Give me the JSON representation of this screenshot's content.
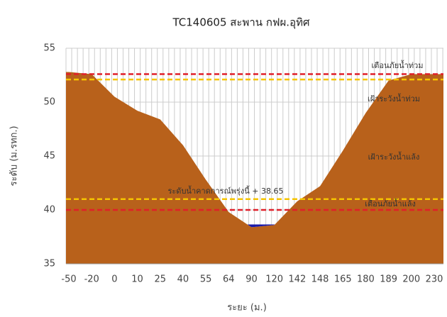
{
  "chart_data": {
    "type": "area",
    "title": "TC140605 สะพาน กฟผ.อุทิศ",
    "xlabel": "ระยะ (ม.)",
    "ylabel": "ระดับ (ม.รทก.)",
    "categories": [
      "-50",
      "-20",
      "0",
      "10",
      "25",
      "40",
      "55",
      "64",
      "90",
      "120",
      "142",
      "148",
      "165",
      "180",
      "189",
      "200",
      "230"
    ],
    "values": [
      52.8,
      52.6,
      50.5,
      49.2,
      48.4,
      46,
      42.8,
      39.8,
      38.4,
      38.6,
      40.8,
      42.2,
      45.5,
      49,
      52,
      52.6,
      52.6
    ],
    "color": "#b8611b",
    "water_level": 38.65,
    "water_color": "#1a1aa8",
    "ylim": [
      35,
      55
    ],
    "yticks": [
      35,
      40,
      45,
      50,
      55
    ],
    "grid": true,
    "levels": [
      {
        "name": "เตือนภัยน้ำท่วม",
        "value": 52.6,
        "color": "#e0202a"
      },
      {
        "name": "เฝ้าระวังน้ำท่วม",
        "value": 52.1,
        "color": "#f5c400"
      },
      {
        "name": "เฝ้าระวังน้ำแล้ง",
        "value": 41,
        "color": "#f5c400"
      },
      {
        "name": "เตือนภัยน้ำแล้ง",
        "value": 40,
        "color": "#e0202a"
      }
    ],
    "annotation": "ระดับน้ำคาดการณ์พรุ่งนี้ + 38.65"
  }
}
